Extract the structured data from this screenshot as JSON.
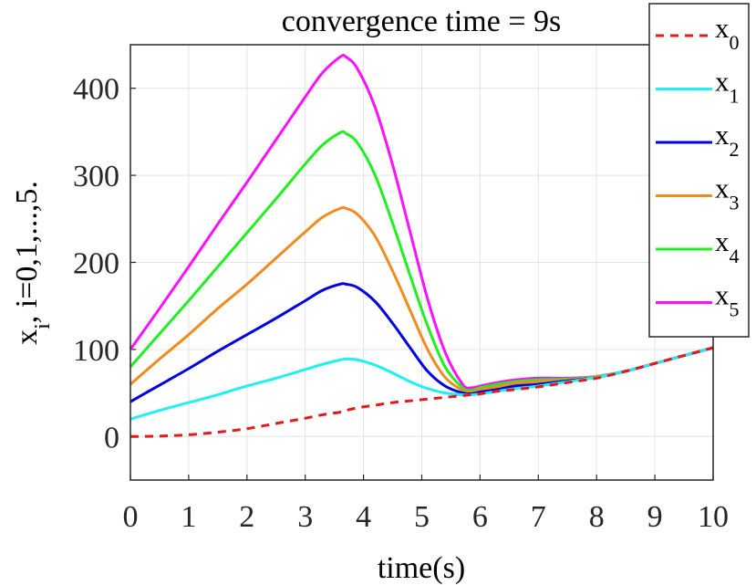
{
  "chart_data": {
    "type": "line",
    "title": "convergence time = 9s",
    "xlabel": "time(s)",
    "ylabel": {
      "main": "x",
      "sub": "i",
      "rest": ", i=0,1,...,5."
    },
    "xlim": [
      0,
      10
    ],
    "ylim": [
      -50,
      450
    ],
    "xticks": [
      "0",
      "1",
      "2",
      "3",
      "4",
      "5",
      "6",
      "7",
      "8",
      "9",
      "10"
    ],
    "yticks": [
      "0",
      "100",
      "200",
      "300",
      "400"
    ],
    "grid": true,
    "legend_position": "outside-top-right",
    "x": [
      0,
      0.5,
      1,
      1.5,
      2,
      2.5,
      3,
      3.3,
      3.6,
      3.7,
      3.9,
      4.2,
      4.5,
      4.8,
      5.1,
      5.4,
      5.7,
      5.85,
      6,
      6.3,
      6.6,
      7,
      7.5,
      8,
      8.5,
      9,
      9.5,
      10
    ],
    "series": [
      {
        "name": "x",
        "sub": "0",
        "color": "#e31a1c",
        "dash": true,
        "values": [
          0,
          0.5,
          2,
          5,
          9,
          15,
          21,
          25,
          28,
          30,
          33,
          36,
          39,
          41,
          43,
          45,
          47,
          48,
          49,
          52,
          54,
          57,
          62,
          67,
          75,
          84,
          93,
          102
        ]
      },
      {
        "name": "x",
        "sub": "1",
        "color": "#22f0f0",
        "dash": false,
        "values": [
          20,
          30,
          39,
          48,
          58,
          67,
          77,
          83,
          88,
          89,
          88,
          82,
          73,
          63,
          55,
          50,
          48,
          48,
          49,
          52,
          55,
          58,
          63,
          68,
          75,
          84,
          93,
          102
        ]
      },
      {
        "name": "x",
        "sub": "2",
        "color": "#0000e0",
        "dash": false,
        "values": [
          40,
          59,
          78,
          98,
          117,
          136,
          156,
          168,
          175,
          175,
          171,
          155,
          130,
          102,
          75,
          58,
          50,
          49,
          51,
          54,
          58,
          60,
          64,
          68,
          75,
          84,
          93,
          102
        ]
      },
      {
        "name": "x",
        "sub": "3",
        "color": "#f08c1e",
        "dash": false,
        "values": [
          60,
          89,
          117,
          147,
          175,
          205,
          235,
          252,
          262,
          262,
          255,
          230,
          190,
          145,
          100,
          68,
          53,
          51,
          54,
          57,
          61,
          63,
          65,
          69,
          75,
          84,
          93,
          102
        ]
      },
      {
        "name": "x",
        "sub": "4",
        "color": "#22ee22",
        "dash": false,
        "values": [
          80,
          118,
          156,
          195,
          234,
          273,
          313,
          335,
          349,
          348,
          337,
          300,
          245,
          185,
          127,
          80,
          56,
          53,
          56,
          60,
          63,
          65,
          66,
          69,
          75,
          84,
          93,
          102
        ]
      },
      {
        "name": "x",
        "sub": "5",
        "color": "#ff11ff",
        "dash": false,
        "values": [
          100,
          147,
          195,
          244,
          292,
          341,
          390,
          418,
          436,
          436,
          422,
          378,
          312,
          235,
          158,
          97,
          60,
          56,
          58,
          62,
          65,
          67,
          67,
          69,
          75,
          84,
          93,
          102
        ]
      }
    ]
  }
}
